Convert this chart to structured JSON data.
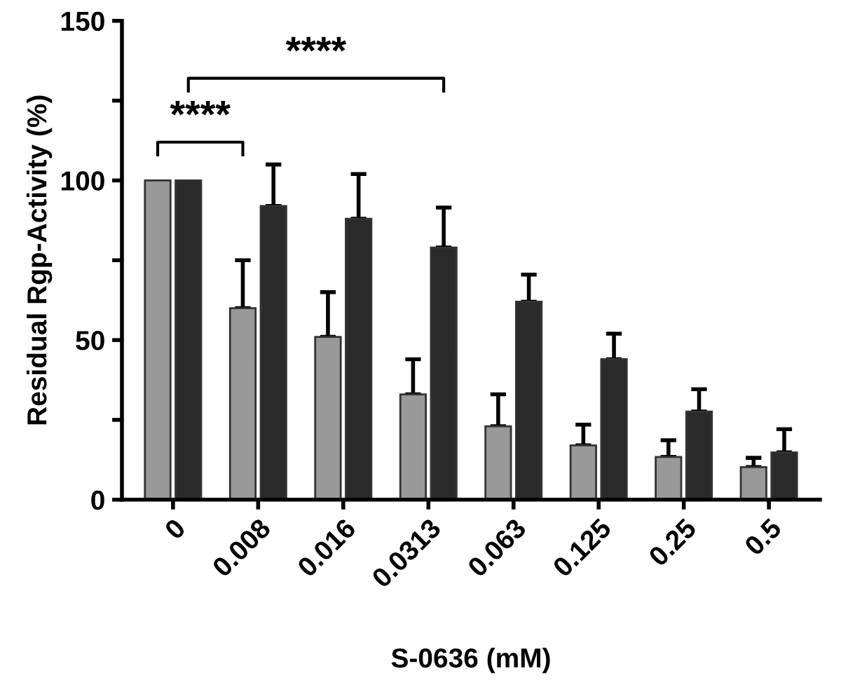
{
  "chart_data": {
    "type": "bar",
    "xlabel": "S-0636 (mM)",
    "ylabel": "Residual Rgp-Activity (%)",
    "categories": [
      "0",
      "0.008",
      "0.016",
      "0.0313",
      "0.063",
      "0.125",
      "0.25",
      "0.5"
    ],
    "series": [
      {
        "color": "#999999",
        "values": [
          100,
          60,
          51,
          33,
          23,
          17,
          13.4,
          10.2
        ],
        "errors": [
          null,
          [
            60,
            75
          ],
          [
            51,
            65
          ],
          [
            33,
            44
          ],
          [
            23,
            33
          ],
          [
            17,
            23.5
          ],
          [
            13.4,
            18.6
          ],
          [
            10.2,
            13.1
          ]
        ]
      },
      {
        "color": "#2a2a2a",
        "values": [
          100,
          92,
          88,
          79,
          62,
          44,
          27.6,
          14.8
        ],
        "errors": [
          null,
          [
            92,
            105
          ],
          [
            88,
            102
          ],
          [
            79,
            91.5
          ],
          [
            62,
            70.5
          ],
          [
            44,
            52
          ],
          [
            27.6,
            34.6
          ],
          [
            14.8,
            22.1
          ]
        ]
      }
    ],
    "ylim": [
      0,
      150
    ],
    "yticks": [
      0,
      {
        "value": 25,
        "label": null
      },
      50,
      {
        "value": 75,
        "label": null
      },
      100,
      {
        "value": 125,
        "label": null
      },
      150
    ],
    "annotations": [
      "****",
      "****"
    ],
    "grid": false,
    "legend": false
  }
}
